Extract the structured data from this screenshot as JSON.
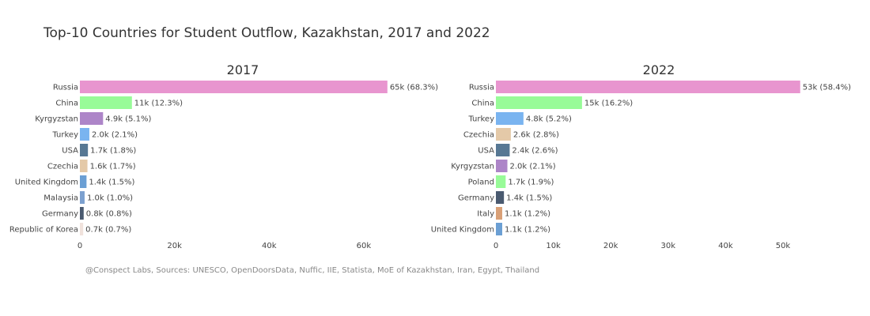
{
  "title": "Top-10 Countries for Student Outflow, Kazakhstan, 2017 and 2022",
  "source": "@Conspect Labs, Sources: UNESCO, OpenDoorsData, Nuffic, IIE, Statista, MoE of Kazakhstan, Iran, Egypt, Thailand",
  "chart_data": [
    {
      "type": "bar",
      "orientation": "horizontal",
      "title": "2017",
      "xlim": [
        0,
        65700
      ],
      "ticks": [
        0,
        20000,
        40000,
        60000
      ],
      "tick_labels": [
        "0",
        "20k",
        "40k",
        "60k"
      ],
      "categories": [
        "Russia",
        "China",
        "Kyrgyzstan",
        "Turkey",
        "USA",
        "Czechia",
        "United Kingdom",
        "Malaysia",
        "Germany",
        "Republic of Korea"
      ],
      "values": [
        65000,
        11000,
        4900,
        2000,
        1700,
        1600,
        1400,
        1000,
        800,
        700
      ],
      "labels": [
        "65k (68.3%)",
        "11k (12.3%)",
        "4.9k (5.1%)",
        "2.0k (2.1%)",
        "1.7k (1.8%)",
        "1.6k (1.7%)",
        "1.4k (1.5%)",
        "1.0k (1.0%)",
        "0.8k (0.8%)",
        "0.7k (0.7%)"
      ],
      "colors": [
        "#e895cf",
        "#98fb98",
        "#ad85c8",
        "#7ab4f0",
        "#577894",
        "#e4c9a8",
        "#6b9fd4",
        "#7ca0cf",
        "#4a5a70",
        "#f0e2dc"
      ]
    },
    {
      "type": "bar",
      "orientation": "horizontal",
      "title": "2022",
      "xlim": [
        0,
        54000
      ],
      "ticks": [
        0,
        10000,
        20000,
        30000,
        40000,
        50000
      ],
      "tick_labels": [
        "0",
        "10k",
        "20k",
        "30k",
        "40k",
        "50k"
      ],
      "categories": [
        "Russia",
        "China",
        "Turkey",
        "Czechia",
        "USA",
        "Kyrgyzstan",
        "Poland",
        "Germany",
        "Italy",
        "United Kingdom"
      ],
      "values": [
        53000,
        15000,
        4800,
        2600,
        2400,
        2000,
        1700,
        1400,
        1100,
        1100
      ],
      "labels": [
        "53k (58.4%)",
        "15k (16.2%)",
        "4.8k (5.2%)",
        "2.6k (2.8%)",
        "2.4k (2.6%)",
        "2.0k (2.1%)",
        "1.7k (1.9%)",
        "1.4k (1.5%)",
        "1.1k (1.2%)",
        "1.1k (1.2%)"
      ],
      "colors": [
        "#e895cf",
        "#98fb98",
        "#7ab4f0",
        "#e4c9a8",
        "#577894",
        "#ad85c8",
        "#98fb98",
        "#4a5a70",
        "#d9a077",
        "#6b9fd4"
      ]
    }
  ]
}
